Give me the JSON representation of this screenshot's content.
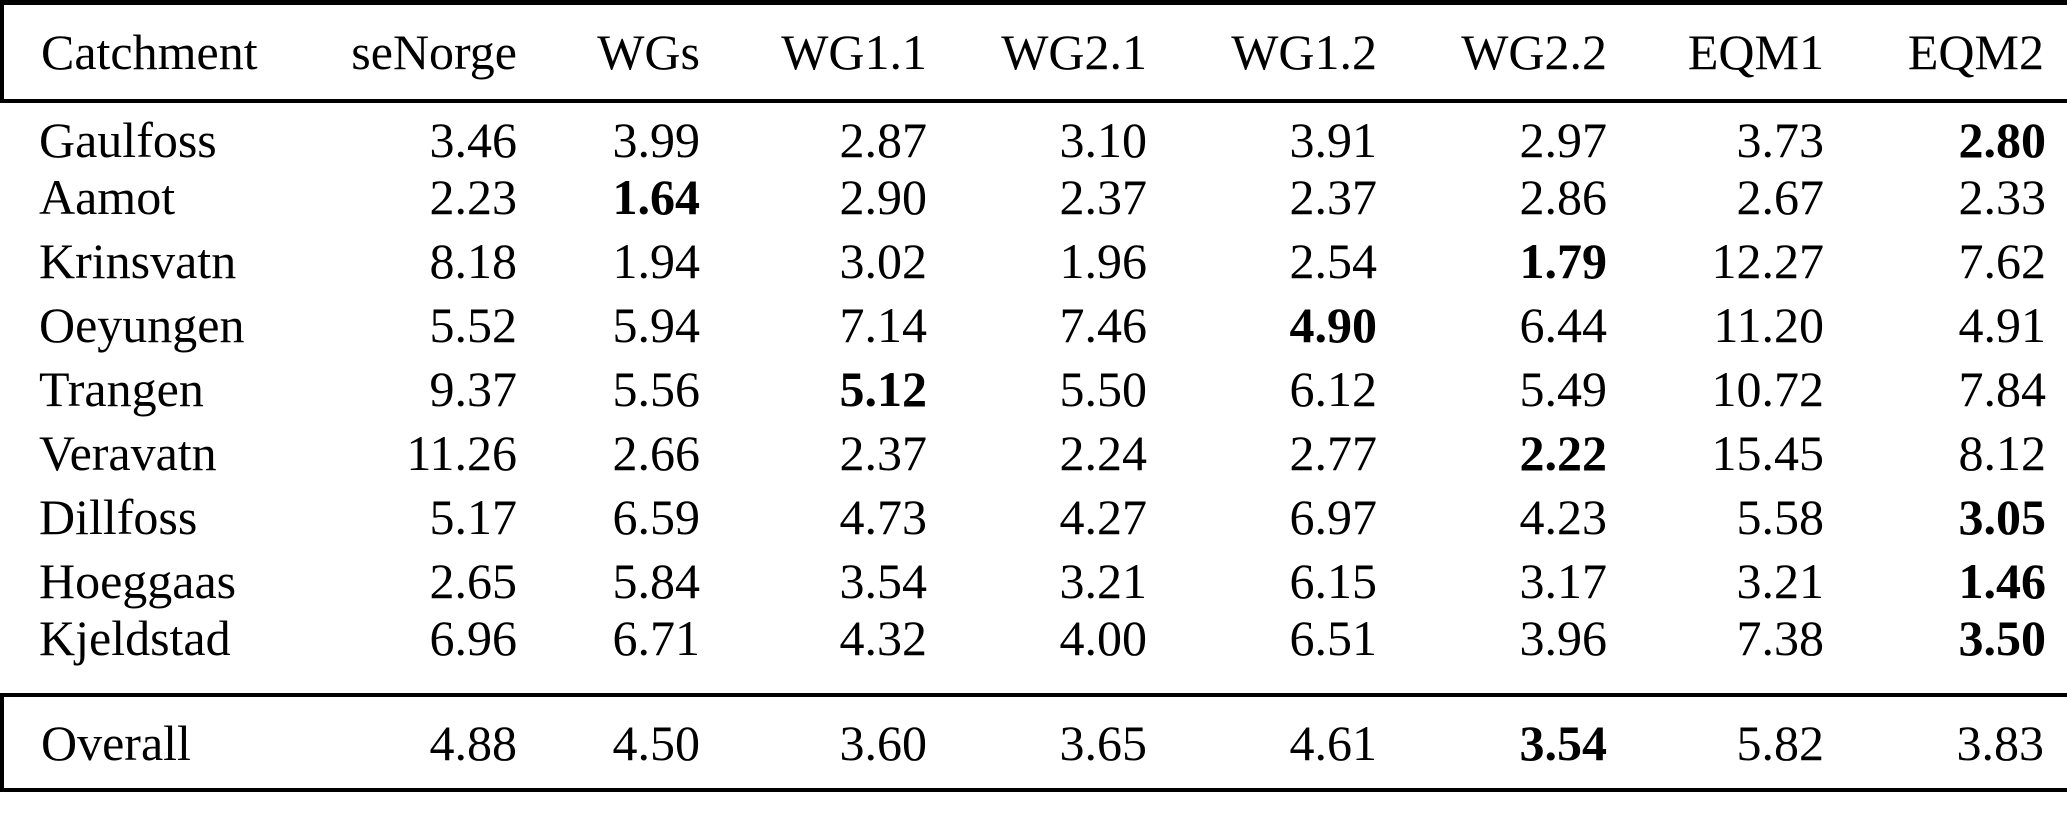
{
  "table": {
    "columns": [
      "Catchment",
      "seNorge",
      "WGs",
      "WG1.1",
      "WG2.1",
      "WG1.2",
      "WG2.2",
      "EQM1",
      "EQM2"
    ],
    "rows": [
      {
        "name": "Gaulfoss",
        "values": [
          "3.46",
          "3.99",
          "2.87",
          "3.10",
          "3.91",
          "2.97",
          "3.73",
          "2.80"
        ],
        "bold_col": 7
      },
      {
        "name": "Aamot",
        "values": [
          "2.23",
          "1.64",
          "2.90",
          "2.37",
          "2.37",
          "2.86",
          "2.67",
          "2.33"
        ],
        "bold_col": 1
      },
      {
        "name": "Krinsvatn",
        "values": [
          "8.18",
          "1.94",
          "3.02",
          "1.96",
          "2.54",
          "1.79",
          "12.27",
          "7.62"
        ],
        "bold_col": 5
      },
      {
        "name": "Oeyungen",
        "values": [
          "5.52",
          "5.94",
          "7.14",
          "7.46",
          "4.90",
          "6.44",
          "11.20",
          "4.91"
        ],
        "bold_col": 4
      },
      {
        "name": "Trangen",
        "values": [
          "9.37",
          "5.56",
          "5.12",
          "5.50",
          "6.12",
          "5.49",
          "10.72",
          "7.84"
        ],
        "bold_col": 2
      },
      {
        "name": "Veravatn",
        "values": [
          "11.26",
          "2.66",
          "2.37",
          "2.24",
          "2.77",
          "2.22",
          "15.45",
          "8.12"
        ],
        "bold_col": 5
      },
      {
        "name": "Dillfoss",
        "values": [
          "5.17",
          "6.59",
          "4.73",
          "4.27",
          "6.97",
          "4.23",
          "5.58",
          "3.05"
        ],
        "bold_col": 7
      },
      {
        "name": "Hoeggaas",
        "values": [
          "2.65",
          "5.84",
          "3.54",
          "3.21",
          "6.15",
          "3.17",
          "3.21",
          "1.46"
        ],
        "bold_col": 7
      },
      {
        "name": "Kjeldstad",
        "values": [
          "6.96",
          "6.71",
          "4.32",
          "4.00",
          "6.51",
          "3.96",
          "7.38",
          "3.50"
        ],
        "bold_col": 7
      }
    ],
    "overall": {
      "name": "Overall",
      "values": [
        "4.88",
        "4.50",
        "3.60",
        "3.65",
        "4.61",
        "3.54",
        "5.82",
        "3.83"
      ],
      "bold_col": 5
    },
    "colors": {
      "text": "#000000",
      "background": "#ffffff",
      "rule": "#000000"
    }
  }
}
